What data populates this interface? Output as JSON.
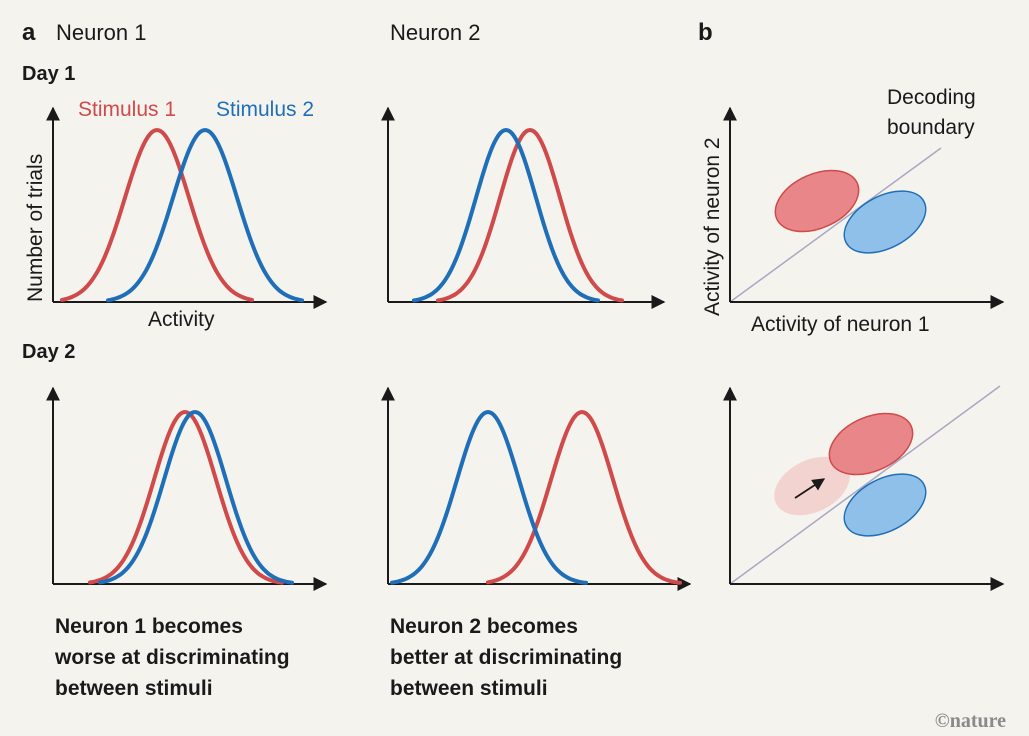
{
  "panel_a": {
    "letter": "a",
    "neuron1_title": "Neuron 1",
    "neuron2_title": "Neuron 2",
    "day1_label": "Day 1",
    "day2_label": "Day 2",
    "legend_stimulus1": "Stimulus 1",
    "legend_stimulus2": "Stimulus 2",
    "y_axis_label": "Number of trials",
    "x_axis_label": "Activity",
    "caption_neuron1": [
      "Neuron 1 becomes",
      "worse at discriminating",
      "between stimuli"
    ],
    "caption_neuron2": [
      "Neuron 2 becomes",
      "better at discriminating",
      "between stimuli"
    ]
  },
  "panel_b": {
    "letter": "b",
    "boundary_label": [
      "Decoding",
      "boundary"
    ],
    "x_axis_label": "Activity of neuron 1",
    "y_axis_label": "Activity of neuron 2"
  },
  "credit": "©nature",
  "colors": {
    "stimulus1": "#d04a4a",
    "stimulus2": "#1f6fb8",
    "stimulus1_fill": "#e8868a",
    "stimulus2_fill": "#8ec0ea",
    "faded_fill": "#f2d3cf",
    "boundary": "#a8a8c4",
    "background": "#f5f3ee"
  },
  "icons": {
    "shift_arrow": "arrow-up-right-icon"
  }
}
